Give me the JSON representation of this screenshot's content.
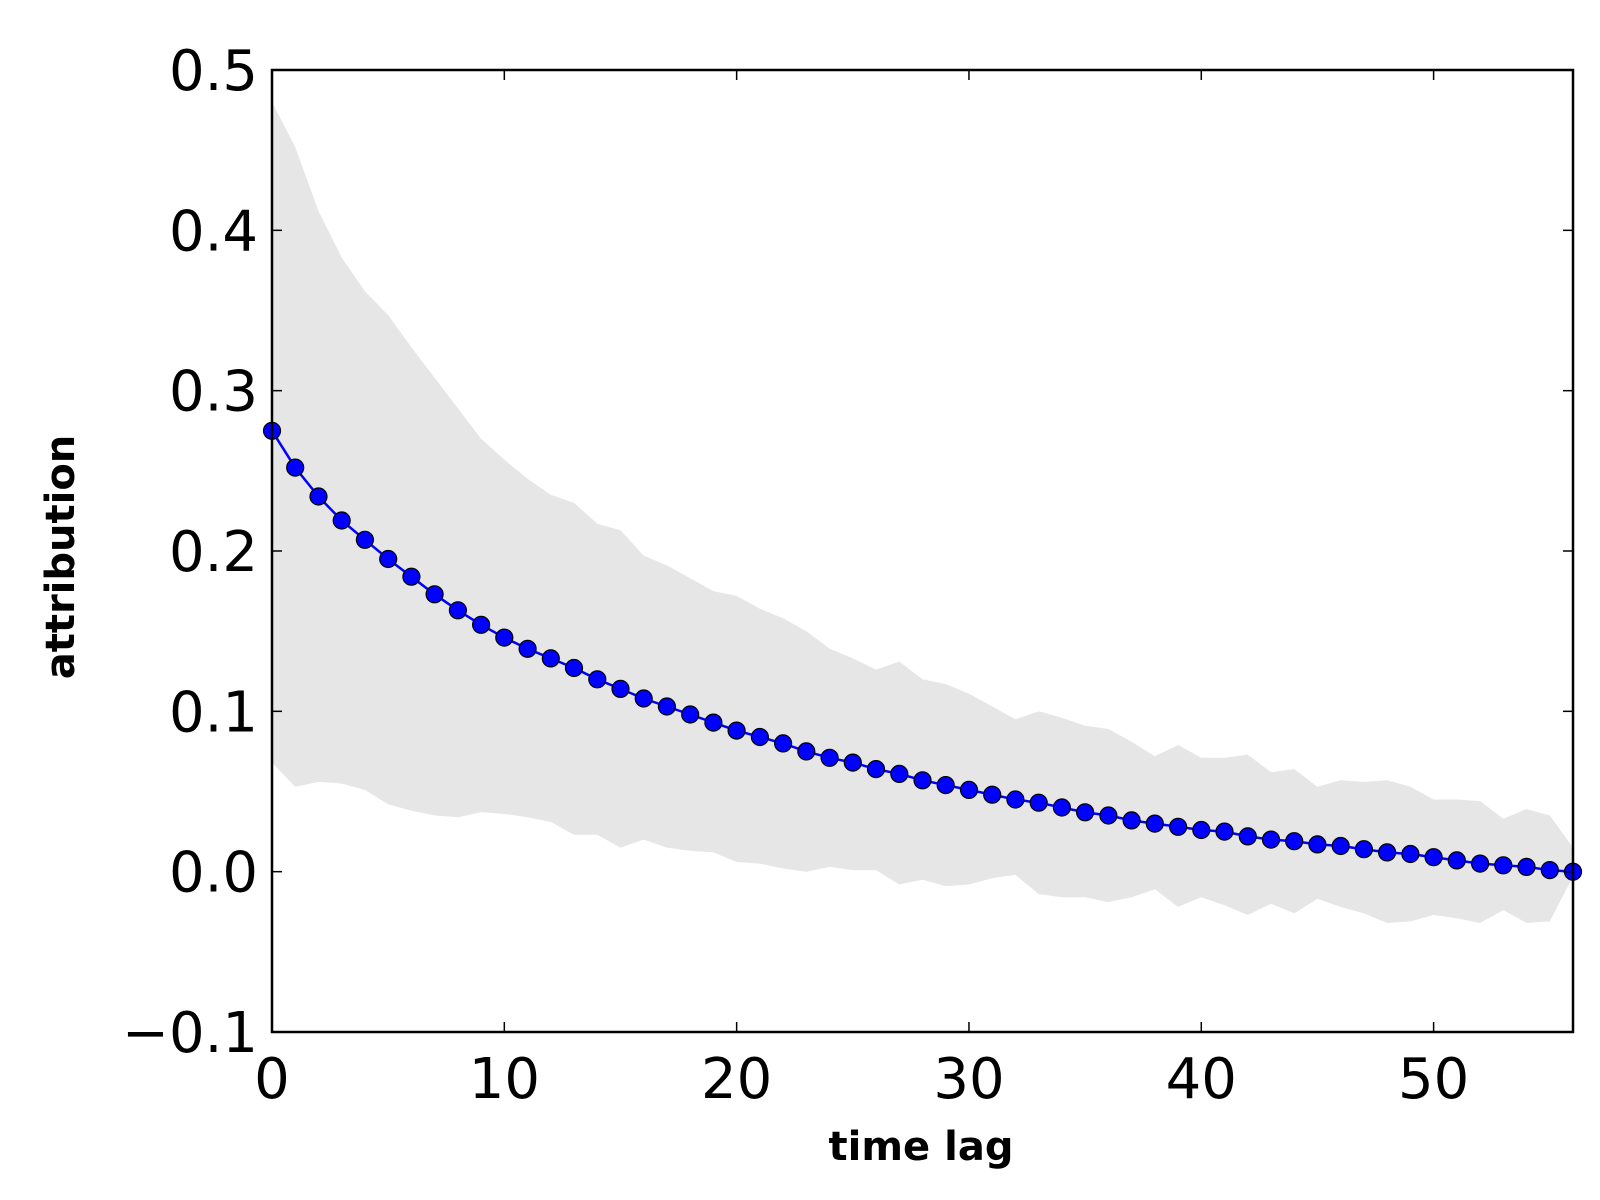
{
  "chart_data": {
    "type": "line",
    "title": "",
    "xlabel": "time lag",
    "ylabel": "attribution",
    "xlim": [
      0,
      56
    ],
    "ylim": [
      -0.1,
      0.5
    ],
    "x_ticks": [
      0,
      10,
      20,
      30,
      40,
      50
    ],
    "x_tick_labels": [
      "0",
      "10",
      "20",
      "30",
      "40",
      "50"
    ],
    "y_ticks": [
      -0.1,
      0.0,
      0.1,
      0.2,
      0.3,
      0.4,
      0.5
    ],
    "y_tick_labels": [
      "−0.1",
      "0.0",
      "0.1",
      "0.2",
      "0.3",
      "0.4",
      "0.5"
    ],
    "grid": false,
    "legend": "none",
    "colors": {
      "line": "#0000ff",
      "marker": "#0000ff",
      "marker_edge": "#000000",
      "band": "#e6e6e6"
    },
    "x": [
      0,
      1,
      2,
      3,
      4,
      5,
      6,
      7,
      8,
      9,
      10,
      11,
      12,
      13,
      14,
      15,
      16,
      17,
      18,
      19,
      20,
      21,
      22,
      23,
      24,
      25,
      26,
      27,
      28,
      29,
      30,
      31,
      32,
      33,
      34,
      35,
      36,
      37,
      38,
      39,
      40,
      41,
      42,
      43,
      44,
      45,
      46,
      47,
      48,
      49,
      50,
      51,
      52,
      53,
      54,
      55,
      56
    ],
    "series": [
      {
        "values": [
          0.275,
          0.252,
          0.234,
          0.219,
          0.207,
          0.195,
          0.184,
          0.173,
          0.163,
          0.154,
          0.146,
          0.139,
          0.133,
          0.127,
          0.12,
          0.114,
          0.108,
          0.103,
          0.098,
          0.093,
          0.088,
          0.084,
          0.08,
          0.075,
          0.071,
          0.068,
          0.064,
          0.061,
          0.057,
          0.054,
          0.051,
          0.048,
          0.045,
          0.043,
          0.04,
          0.037,
          0.035,
          0.032,
          0.03,
          0.028,
          0.026,
          0.025,
          0.022,
          0.02,
          0.019,
          0.017,
          0.016,
          0.014,
          0.012,
          0.011,
          0.009,
          0.007,
          0.005,
          0.004,
          0.003,
          0.001,
          0.0
        ],
        "band_upper": [
          0.48,
          0.452,
          0.412,
          0.383,
          0.362,
          0.347,
          0.327,
          0.308,
          0.289,
          0.27,
          0.257,
          0.245,
          0.235,
          0.23,
          0.217,
          0.213,
          0.197,
          0.191,
          0.183,
          0.175,
          0.172,
          0.164,
          0.158,
          0.15,
          0.139,
          0.133,
          0.126,
          0.131,
          0.12,
          0.117,
          0.111,
          0.103,
          0.095,
          0.1,
          0.096,
          0.091,
          0.089,
          0.081,
          0.072,
          0.079,
          0.071,
          0.071,
          0.073,
          0.062,
          0.064,
          0.053,
          0.057,
          0.056,
          0.057,
          0.053,
          0.045,
          0.045,
          0.044,
          0.033,
          0.039,
          0.035,
          0.015
        ],
        "band_lower": [
          0.068,
          0.053,
          0.056,
          0.055,
          0.051,
          0.042,
          0.038,
          0.035,
          0.034,
          0.037,
          0.036,
          0.034,
          0.031,
          0.023,
          0.023,
          0.015,
          0.02,
          0.015,
          0.013,
          0.012,
          0.006,
          0.005,
          0.002,
          0.0,
          0.003,
          0.001,
          0.001,
          -0.008,
          -0.005,
          -0.009,
          -0.008,
          -0.004,
          -0.002,
          -0.014,
          -0.016,
          -0.016,
          -0.019,
          -0.016,
          -0.011,
          -0.022,
          -0.016,
          -0.021,
          -0.027,
          -0.02,
          -0.026,
          -0.017,
          -0.022,
          -0.026,
          -0.032,
          -0.031,
          -0.027,
          -0.029,
          -0.032,
          -0.024,
          -0.032,
          -0.031,
          -0.003
        ]
      }
    ]
  }
}
